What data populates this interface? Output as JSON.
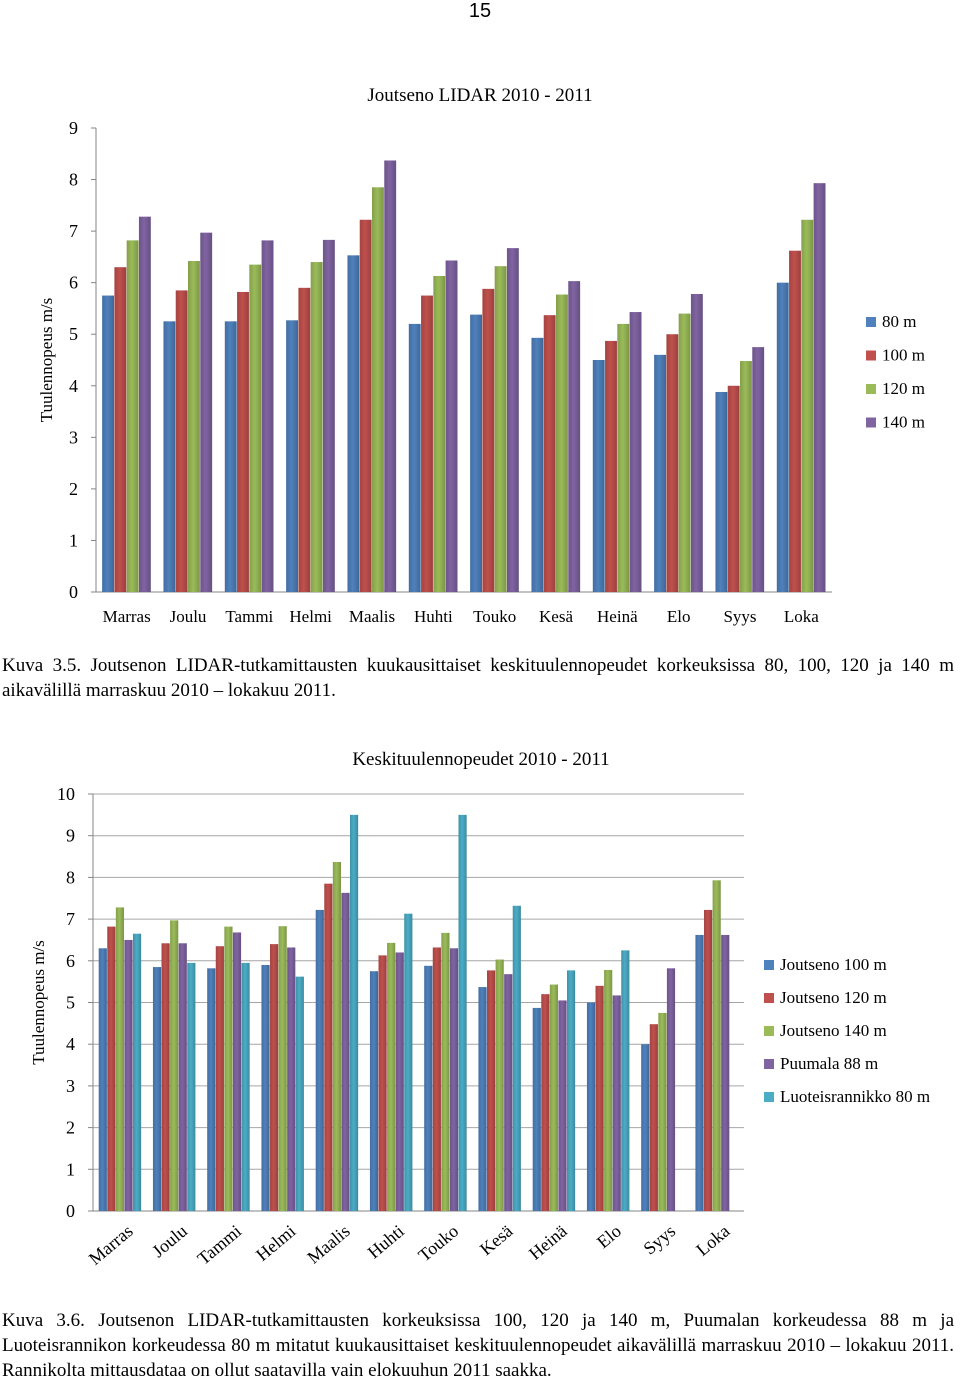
{
  "page_number": "15",
  "captions": {
    "first": "Kuva 3.5. Joutsenon LIDAR-tutkamittausten kuukausittaiset keskituulennopeudet korkeuksissa 80, 100, 120 ja 140 m aikavälillä marraskuu 2010 – lokakuu 2011.",
    "second": "Kuva 3.6. Joutsenon LIDAR-tutkamittausten korkeuksissa 100, 120 ja 140 m, Puumalan korkeudessa 88 m ja Luoteisrannikon korkeudessa 80 m mitatut kuukausittaiset keskituulennopeudet aikavälillä marraskuu 2010 – lokakuu 2011. Rannikolta mittausdataa on ollut saatavilla vain elokuuhun 2011 saakka."
  },
  "chart_data": [
    {
      "type": "bar",
      "title": "Joutseno LIDAR 2010 - 2011",
      "ylabel": "Tuulennopeus m/s",
      "xlabel": "",
      "ylim": [
        0,
        9
      ],
      "yticks": [
        "0",
        "1",
        "2",
        "3",
        "4",
        "5",
        "6",
        "7",
        "8",
        "9"
      ],
      "grid": false,
      "legend_position": "right",
      "categories": [
        "Marras",
        "Joulu",
        "Tammi",
        "Helmi",
        "Maalis",
        "Huhti",
        "Touko",
        "Kesä",
        "Heinä",
        "Elo",
        "Syys",
        "Loka"
      ],
      "series": [
        {
          "name": "80 m",
          "color": "#4F81BD",
          "values": [
            5.75,
            5.25,
            5.25,
            5.27,
            6.53,
            5.2,
            5.38,
            4.93,
            4.5,
            4.6,
            3.88,
            6.0
          ]
        },
        {
          "name": "100 m",
          "color": "#C0504D",
          "values": [
            6.3,
            5.85,
            5.82,
            5.9,
            7.22,
            5.75,
            5.88,
            5.37,
            4.87,
            5.0,
            4.0,
            6.62
          ]
        },
        {
          "name": "120 m",
          "color": "#9BBB59",
          "values": [
            6.82,
            6.42,
            6.35,
            6.4,
            7.85,
            6.13,
            6.32,
            5.77,
            5.2,
            5.4,
            4.48,
            7.22
          ]
        },
        {
          "name": "140 m",
          "color": "#8064A2",
          "values": [
            7.28,
            6.97,
            6.82,
            6.83,
            8.37,
            6.43,
            6.67,
            6.03,
            5.43,
            5.78,
            4.75,
            7.93
          ]
        }
      ]
    },
    {
      "type": "bar",
      "title": "Keskituulennopeudet 2010 - 2011",
      "ylabel": "Tuulennopeus m/s",
      "xlabel": "",
      "ylim": [
        0,
        10
      ],
      "yticks": [
        "0",
        "1",
        "2",
        "3",
        "4",
        "5",
        "6",
        "7",
        "8",
        "9",
        "10"
      ],
      "grid": true,
      "legend_position": "right",
      "categories": [
        "Marras",
        "Joulu",
        "Tammi",
        "Helmi",
        "Maalis",
        "Huhti",
        "Touko",
        "Kesä",
        "Heinä",
        "Elo",
        "Syys",
        "Loka"
      ],
      "series": [
        {
          "name": "Joutseno 100 m",
          "color": "#4F81BD",
          "values": [
            6.3,
            5.85,
            5.82,
            5.9,
            7.22,
            5.75,
            5.88,
            5.37,
            4.87,
            5.0,
            4.0,
            6.62
          ]
        },
        {
          "name": "Joutseno 120 m",
          "color": "#C0504D",
          "values": [
            6.82,
            6.42,
            6.35,
            6.4,
            7.85,
            6.13,
            6.32,
            5.77,
            5.2,
            5.4,
            4.48,
            7.22
          ]
        },
        {
          "name": "Joutseno 140 m",
          "color": "#9BBB59",
          "values": [
            7.28,
            6.97,
            6.82,
            6.83,
            8.37,
            6.43,
            6.67,
            6.03,
            5.43,
            5.78,
            4.75,
            7.93
          ]
        },
        {
          "name": "Puumala 88 m",
          "color": "#8064A2",
          "values": [
            6.5,
            6.42,
            6.68,
            6.32,
            7.63,
            6.2,
            6.3,
            5.68,
            5.05,
            5.17,
            5.82,
            6.62
          ]
        },
        {
          "name": "Luoteisrannikko 80 m",
          "color": "#4BACC6",
          "values": [
            6.65,
            5.95,
            5.95,
            5.62,
            9.5,
            7.13,
            9.5,
            7.32,
            5.77,
            6.25,
            null,
            null
          ]
        }
      ]
    }
  ]
}
